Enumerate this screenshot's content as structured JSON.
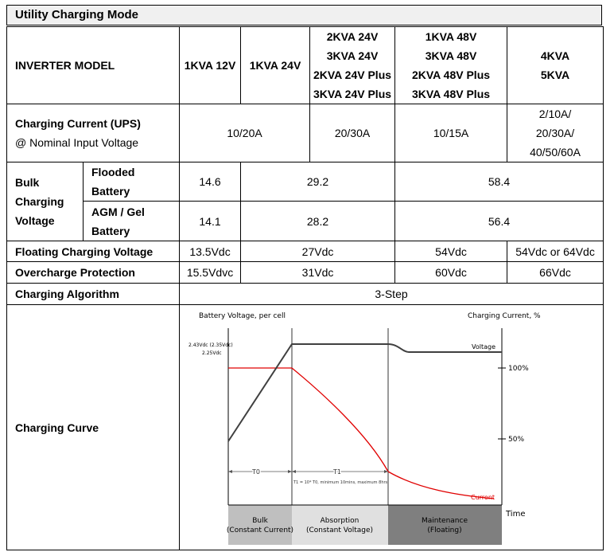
{
  "title": "Utility Charging Mode",
  "header": {
    "label": "INVERTER MODEL",
    "models": [
      [
        "1KVA 12V"
      ],
      [
        "1KVA 24V"
      ],
      [
        "2KVA 24V",
        "3KVA 24V",
        "2KVA 24V Plus",
        "3KVA 24V Plus"
      ],
      [
        "1KVA 48V",
        "3KVA 48V",
        "2KVA 48V Plus",
        "3KVA 48V Plus"
      ],
      [
        "4KVA",
        "5KVA"
      ]
    ]
  },
  "charging_current": {
    "label": "Charging Current (UPS)",
    "sublabel": "@ Nominal Input Voltage",
    "values": [
      "10/20A",
      "20/30A",
      "10/15A",
      [
        "2/10A/",
        "20/30A/",
        "40/50/60A"
      ]
    ]
  },
  "bulk": {
    "label": [
      "Bulk",
      "Charging",
      "Voltage"
    ],
    "flooded": {
      "label": [
        "Flooded",
        "Battery"
      ],
      "values": [
        "14.6",
        "29.2",
        "58.4"
      ]
    },
    "agm": {
      "label": [
        "AGM / Gel",
        "Battery"
      ],
      "values": [
        "14.1",
        "28.2",
        "56.4"
      ]
    }
  },
  "floating": {
    "label": "Floating Charging Voltage",
    "values": [
      "13.5Vdc",
      "27Vdc",
      "54Vdc",
      "54Vdc or 64Vdc"
    ]
  },
  "overcharge": {
    "label": "Overcharge Protection",
    "values": [
      "15.5Vdvc",
      "31Vdc",
      "60Vdc",
      "66Vdc"
    ]
  },
  "algorithm": {
    "label": "Charging Algorithm",
    "value": "3-Step"
  },
  "curve": {
    "label": "Charging Curve",
    "y_left_title": "Battery Voltage, per cell",
    "y_right_title": "Charging Current, %",
    "v_label_1": "2.43Vdc (2.35Vdc)",
    "v_label_2": "2.25Vdc",
    "voltage_label": "Voltage",
    "current_label": "Current",
    "pct_100": "100%",
    "pct_50": "50%",
    "t0": "T0",
    "t1": "T1",
    "t1_note": "T1 = 10* T0, minimum 10mins, maximum 8hrs",
    "time_label": "Time",
    "stages": [
      {
        "name": "Bulk",
        "sub": "(Constant Current)",
        "color": "#bfbfbf"
      },
      {
        "name": "Absorption",
        "sub": "(Constant Voltage)",
        "color": "#e0e0e0"
      },
      {
        "name": "Maintenance",
        "sub": "(Floating)",
        "color": "#7f7f7f"
      }
    ],
    "voltage_color": "#404040",
    "current_color": "#e00000"
  }
}
